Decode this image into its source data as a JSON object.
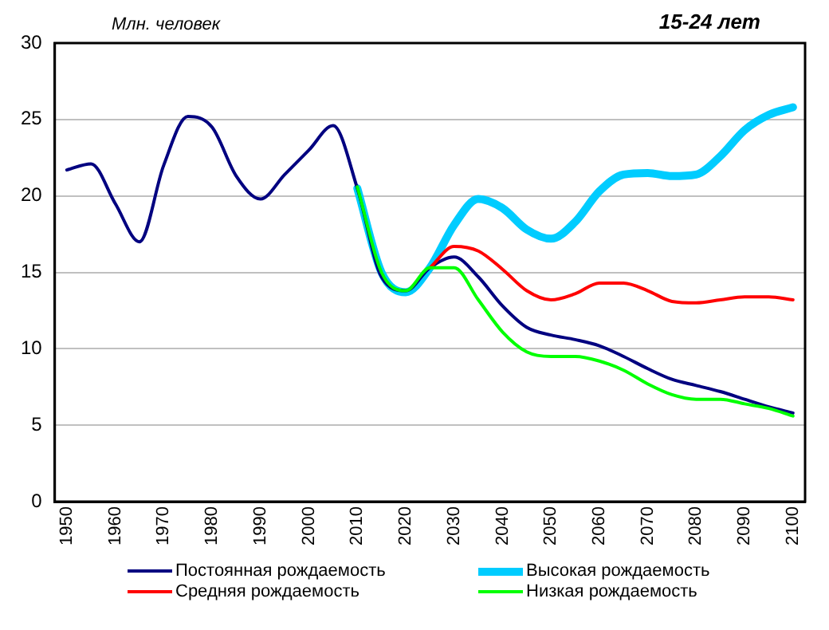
{
  "chart_data": {
    "type": "line",
    "title": "15-24 лет",
    "ylabel": "Млн. человек",
    "xlim": [
      1947.5,
      2102.5
    ],
    "xticks": [
      1950,
      1960,
      1970,
      1980,
      1990,
      2000,
      2010,
      2020,
      2030,
      2040,
      2050,
      2060,
      2070,
      2080,
      2090,
      2100
    ],
    "ylim": [
      0,
      30
    ],
    "yticks": [
      0,
      5,
      10,
      15,
      20,
      25,
      30
    ],
    "grid": "y",
    "legend": "bottom",
    "marker": "none",
    "line_style": "solid",
    "series": [
      {
        "name": "Постоянная рождаемость",
        "color": "#000080",
        "x": [
          1950,
          1955,
          1960,
          1965,
          1970,
          1975,
          1980,
          1985,
          1990,
          1995,
          2000,
          2005,
          2010,
          2015,
          2020,
          2025,
          2030,
          2035,
          2040,
          2045,
          2050,
          2055,
          2060,
          2065,
          2070,
          2075,
          2080,
          2085,
          2090,
          2095,
          2100
        ],
        "values": [
          21.7,
          22.1,
          19.5,
          17.0,
          22.0,
          25.2,
          24.5,
          21.3,
          19.8,
          21.4,
          23.0,
          24.6,
          20.5,
          14.7,
          13.8,
          15.3,
          16.0,
          14.7,
          12.8,
          11.4,
          10.9,
          10.6,
          10.2,
          9.5,
          8.7,
          8.0,
          7.6,
          7.2,
          6.7,
          6.2,
          5.8
        ]
      },
      {
        "name": "Высокая рождаемость",
        "color": "#00ccff",
        "x": [
          2010,
          2015,
          2020,
          2025,
          2030,
          2035,
          2040,
          2045,
          2050,
          2055,
          2060,
          2065,
          2070,
          2075,
          2080,
          2085,
          2090,
          2095,
          2100
        ],
        "values": [
          20.5,
          15.0,
          13.7,
          15.3,
          18.1,
          19.8,
          19.2,
          17.8,
          17.2,
          18.3,
          20.3,
          21.4,
          21.5,
          21.3,
          21.4,
          22.6,
          24.3,
          25.3,
          25.8
        ]
      },
      {
        "name": "Средняя рождаемость",
        "color": "#ff0000",
        "x": [
          2025,
          2030,
          2035,
          2040,
          2045,
          2050,
          2055,
          2060,
          2065,
          2070,
          2075,
          2080,
          2085,
          2090,
          2095,
          2100
        ],
        "values": [
          15.3,
          16.7,
          16.4,
          15.2,
          13.8,
          13.2,
          13.6,
          14.3,
          14.3,
          13.8,
          13.1,
          13.0,
          13.2,
          13.4,
          13.4,
          13.2
        ]
      },
      {
        "name": "Низкая рождаемость",
        "color": "#00ff00",
        "x": [
          2010,
          2015,
          2020,
          2025,
          2030,
          2035,
          2040,
          2045,
          2050,
          2055,
          2060,
          2065,
          2070,
          2075,
          2080,
          2085,
          2090,
          2095,
          2100
        ],
        "values": [
          20.6,
          15.0,
          13.8,
          15.3,
          15.3,
          13.2,
          11.1,
          9.8,
          9.5,
          9.5,
          9.2,
          8.6,
          7.7,
          7.0,
          6.7,
          6.7,
          6.4,
          6.1,
          5.6
        ]
      }
    ]
  }
}
